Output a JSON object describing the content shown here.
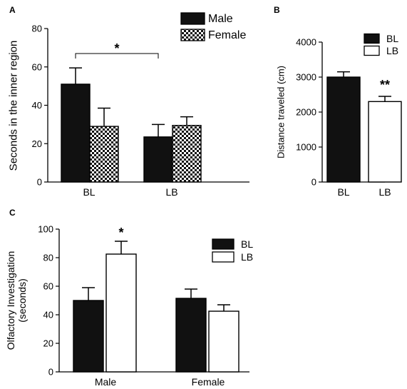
{
  "chart_data": [
    {
      "panel": "A",
      "type": "bar",
      "categories": [
        "BL",
        "LB"
      ],
      "series": [
        {
          "name": "Male",
          "values": [
            51,
            23.5
          ],
          "errors": [
            8.5,
            6.5
          ],
          "fill": "solid"
        },
        {
          "name": "Female",
          "values": [
            29,
            29.5
          ],
          "errors": [
            9.5,
            4.5
          ],
          "fill": "checker"
        }
      ],
      "ylabel": "Seconds in the inner region",
      "ylim": [
        0,
        80
      ],
      "yticks": [
        "0",
        "20",
        "40",
        "60",
        "80"
      ],
      "legend": "top-right",
      "annotation": {
        "text": "*",
        "between": [
          "BL Male",
          "LB Male"
        ]
      }
    },
    {
      "panel": "B",
      "type": "bar",
      "categories": [
        "BL",
        "LB"
      ],
      "series": [
        {
          "name": "BL",
          "values": [
            3000,
            null
          ],
          "errors": [
            150,
            null
          ],
          "fill": "solid"
        },
        {
          "name": "LB",
          "values": [
            null,
            2300
          ],
          "errors": [
            null,
            150
          ],
          "fill": "white"
        }
      ],
      "ylabel": "Distance traveled  (cm)",
      "ylim": [
        0,
        4000
      ],
      "yticks": [
        "0",
        "1000",
        "2000",
        "3000",
        "4000"
      ],
      "legend": "top-right",
      "annotation": {
        "text": "**",
        "on": "LB"
      }
    },
    {
      "panel": "C",
      "type": "bar",
      "categories": [
        "Male",
        "Female"
      ],
      "series": [
        {
          "name": "BL",
          "values": [
            50,
            51.5
          ],
          "errors": [
            9,
            6.5
          ],
          "fill": "solid"
        },
        {
          "name": "LB",
          "values": [
            82.5,
            42.5
          ],
          "errors": [
            9,
            4.5
          ],
          "fill": "white"
        }
      ],
      "ylabel": [
        "Olfactory Investigation",
        "(seconds)"
      ],
      "ylim": [
        0,
        100
      ],
      "yticks": [
        "0",
        "20",
        "40",
        "60",
        "80",
        "100"
      ],
      "legend": "right",
      "annotation": {
        "text": "*",
        "on": "Male LB"
      }
    }
  ]
}
